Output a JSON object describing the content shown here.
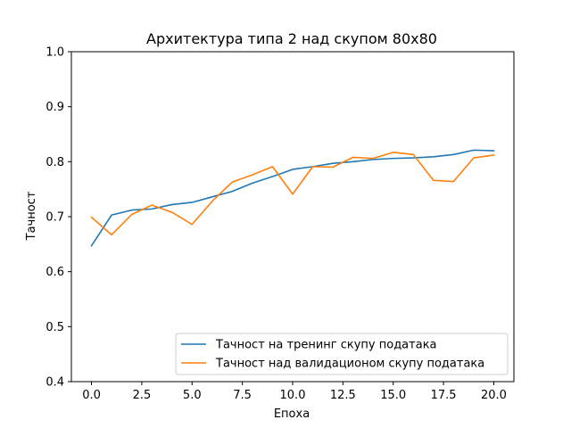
{
  "chart_data": {
    "type": "line",
    "title": "Архитектура типа 2 над скупом 80x80",
    "xlabel": "Епоха",
    "ylabel": "Тачност",
    "xlim": [
      -1,
      21
    ],
    "ylim": [
      0.4,
      1.0
    ],
    "xticks": [
      0.0,
      2.5,
      5.0,
      7.5,
      10.0,
      12.5,
      15.0,
      17.5,
      20.0
    ],
    "xtick_labels": [
      "0.0",
      "2.5",
      "5.0",
      "7.5",
      "10.0",
      "12.5",
      "15.0",
      "17.5",
      "20.0"
    ],
    "yticks": [
      0.4,
      0.5,
      0.6,
      0.7,
      0.8,
      0.9,
      1.0
    ],
    "ytick_labels": [
      "0.4",
      "0.5",
      "0.6",
      "0.7",
      "0.8",
      "0.9",
      "1.0"
    ],
    "x": [
      0,
      1,
      2,
      3,
      4,
      5,
      6,
      7,
      8,
      9,
      10,
      11,
      12,
      13,
      14,
      15,
      16,
      17,
      18,
      19,
      20
    ],
    "series": [
      {
        "name": "Тачност на тренинг скупу података",
        "color": "#1f77b4",
        "values": [
          0.647,
          0.703,
          0.712,
          0.714,
          0.722,
          0.726,
          0.736,
          0.746,
          0.761,
          0.773,
          0.786,
          0.791,
          0.797,
          0.8,
          0.804,
          0.806,
          0.807,
          0.809,
          0.813,
          0.821,
          0.82
        ]
      },
      {
        "name": "Тачност над валидационом скупу података",
        "color": "#ff7f0e",
        "values": [
          0.699,
          0.667,
          0.704,
          0.721,
          0.708,
          0.686,
          0.728,
          0.763,
          0.776,
          0.791,
          0.741,
          0.791,
          0.79,
          0.808,
          0.806,
          0.817,
          0.813,
          0.766,
          0.764,
          0.807,
          0.812
        ]
      }
    ],
    "grid": false,
    "legend_position": "lower-right"
  }
}
